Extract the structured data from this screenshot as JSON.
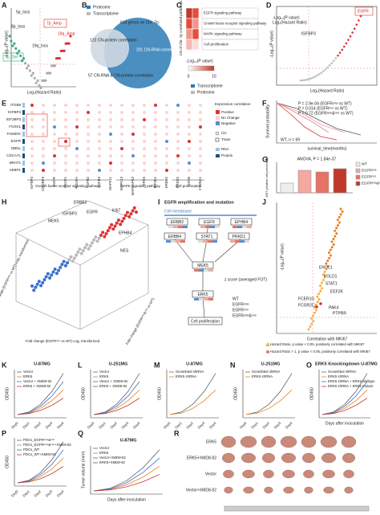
{
  "panels": {
    "A": {
      "label": "A",
      "texts": [
        "7p_Amp",
        "5p_loss",
        "8p_loss",
        "18q_Amp",
        "19q_loss",
        "7p_Del",
        "-Log₁₀(P value)",
        "Log₂(Hazard Ratio)"
      ]
    },
    "B": {
      "label": "B",
      "texts": [
        "Proteome",
        "Transcriptome",
        "614 genes on Chr. 7p",
        "123 CN-protein correlation",
        "201 CN-RNA correlation",
        "57 CN-RNA & CN-protein correlation"
      ]
    },
    "C": {
      "label": "C",
      "title": "CN of Chr. 7p correlated pathways",
      "pathways": [
        "EGFR signaling pathway",
        "Growth factor receptor signaling pathway",
        "MAPK signaling pathway",
        "Cell proliferation"
      ],
      "legend": [
        "-Log₁₀(P value)",
        "0",
        "15",
        "Transcriptome",
        "Proteome"
      ]
    },
    "D": {
      "label": "D",
      "texts": [
        "EGFR",
        "IGFBP3",
        "-Log₁₀(P value)",
        "Log₂(Hazard Ratio)"
      ]
    },
    "E": {
      "label": "E",
      "rows": [
        "ITGB8",
        "IGFBP3",
        "IGF2BP3",
        "FOXK1",
        "FAM20C",
        "EGFR",
        "DBNL",
        "CDCA7L",
        "BRAT1",
        "AEBP1"
      ],
      "cols": [
        "IGFBP3",
        "IGF2BP3",
        "EGFR",
        "VEGFA",
        "PDGFA",
        "TGFB2",
        "TGFB3",
        "MAPK11",
        "MAPK13",
        "MAPKAPK3",
        "ERK5",
        "EIF3K1",
        "ERBB2",
        "PRKD2",
        "CD96",
        "CTNNA1"
      ],
      "groups": [
        "Growth factor receptor signaling pathway",
        "MAPK signaling pathway",
        "Cell proliferation"
      ],
      "legend": [
        "Expression correlation",
        "Positive",
        "No Change",
        "Negative",
        "Cis",
        "Trans",
        "RNA",
        "Protein"
      ]
    },
    "F": {
      "label": "F",
      "texts": [
        "P = 2.9e-04 (EGFRᵃᵐᵖ vs WT)",
        "P = 0.014 (EGFRᵐᵘᵗ vs WT)",
        "P = 0.72 (EGFRᵃᵐᵖ&ᵐᵘᵗ vs WT)",
        "Survival probability",
        "survival_time(months)",
        "WT, n = 69"
      ]
    },
    "G": {
      "label": "G",
      "title": "ANOVA, P = 1.84e-37",
      "ylabel": "Ki67 positive cell percentage",
      "legend": [
        "WT",
        "EGFRᵃᵐᵖ",
        "EGFRᵐᵘᵗ",
        "EGFRᵃᵐᵖ&ᵐᵘᵗ"
      ]
    },
    "H": {
      "label": "H",
      "texts": [
        "ERBB2",
        "EGFR",
        "IGFBP3",
        "MEK5",
        "KI67",
        "EPHB4",
        "NES",
        "Fold change (EGFRᵃᵐᵖ vs WT) Log₂ transformed",
        "Fold change (EGFRᵐᵘᵗ vs WT) Log₂ transformed",
        "Fold change (EGFRᵃᵐᵖ&ᵐᵘᵗ vs WT)"
      ]
    },
    "I": {
      "label": "I",
      "texts": [
        "EGFR amplification and mutation",
        "Cell membrane",
        "ERBB2",
        "EGFR",
        "EPHB4",
        "ERBB4",
        "STAT1",
        "PRKD1",
        "MEK5",
        "ERK5",
        "Cell proliferation",
        "z score (averaged FOT)",
        "WT",
        "EGFRᵃᵐᵖ",
        "EGFRᵐᵘᵗ",
        "EGFRᵃᵐᵖ&ᵐᵘᵗ"
      ]
    },
    "J": {
      "label": "J",
      "texts": [
        "ERCC1",
        "POLD1",
        "STAT1",
        "EEF2K",
        "FCER1G",
        "FCGR2C",
        "PAK4",
        "PTPRR",
        "Correlation with MKI67",
        "-Log₁₀(P value)",
        "Hazard Ratio, p value < 0.05, positively correlated with MKI67",
        "Hazard Ratio > 1, p value < 0.05, positively correlated with MKI67"
      ]
    },
    "K": {
      "label": "K",
      "title": "U-87MG",
      "legend": [
        "Vector",
        "ERK5",
        "Vector + XMD8-92",
        "ERK5 + XMD8-92"
      ],
      "ylabel": "OD450",
      "days": [
        "Day0",
        "Day1",
        "Day2",
        "Day3",
        "Day4"
      ]
    },
    "L": {
      "label": "L",
      "title": "U-251MG",
      "legend": [
        "Vector",
        "ERK5",
        "Vector + XMD8-92",
        "ERK5 + XMD8-92"
      ],
      "ylabel": "OD450",
      "days": [
        "Day0",
        "Day1",
        "Day2",
        "Day3",
        "Day4"
      ]
    },
    "M": {
      "label": "M",
      "title": "U-87MG",
      "legend": [
        "Scrambled shRNA",
        "ERK5 shRNA"
      ],
      "ylabel": "OD450",
      "days": [
        "Day0",
        "Day1",
        "Day2",
        "Day3",
        "Day4"
      ]
    },
    "N": {
      "label": "N",
      "title": "U-251MG",
      "legend": [
        "Scrambled shRNA",
        "ERK5 shRNA"
      ],
      "ylabel": "OD450",
      "days": [
        "Day0",
        "Day1",
        "Day2",
        "Day3",
        "Day4"
      ]
    },
    "O": {
      "label": "O",
      "title": "ERK5 Knockingdown U-87MG",
      "legend": [
        "Scrambled shRNA",
        "ERK5 shRNA",
        "ERK5 shRNA + ERK5 wildtype",
        "ERK5 shRNA + ERK5 mutant"
      ],
      "ylabel": "OD450",
      "xlabel": "Days after inoculation"
    },
    "P": {
      "label": "P",
      "legend": [
        "PDCs_EGFRᵃᵐᵖ&ᵐᵘᵗ",
        "PDCs_EGFRᵃᵐᵖ&ᵐᵘᵗ+XMD8-92",
        "PDCs_WT",
        "PDCs_WT+XMD8-92"
      ],
      "ylabel": "OD450",
      "days": [
        "Day0",
        "Day1",
        "Day2",
        "Day3",
        "Day4"
      ]
    },
    "Q": {
      "label": "Q",
      "title": "U-87MG",
      "legend": [
        "Vector",
        "ERK5",
        "Vector+XMD8-92",
        "ERK5+XMD8-92"
      ],
      "ylabel": "Tumor volume (mm³)",
      "xlabel": "Days after inoculation"
    },
    "R": {
      "label": "R",
      "rows": [
        "ERK5",
        "ERK5+XMD8-92",
        "Vector",
        "Vector+XMD8-92"
      ]
    }
  }
}
